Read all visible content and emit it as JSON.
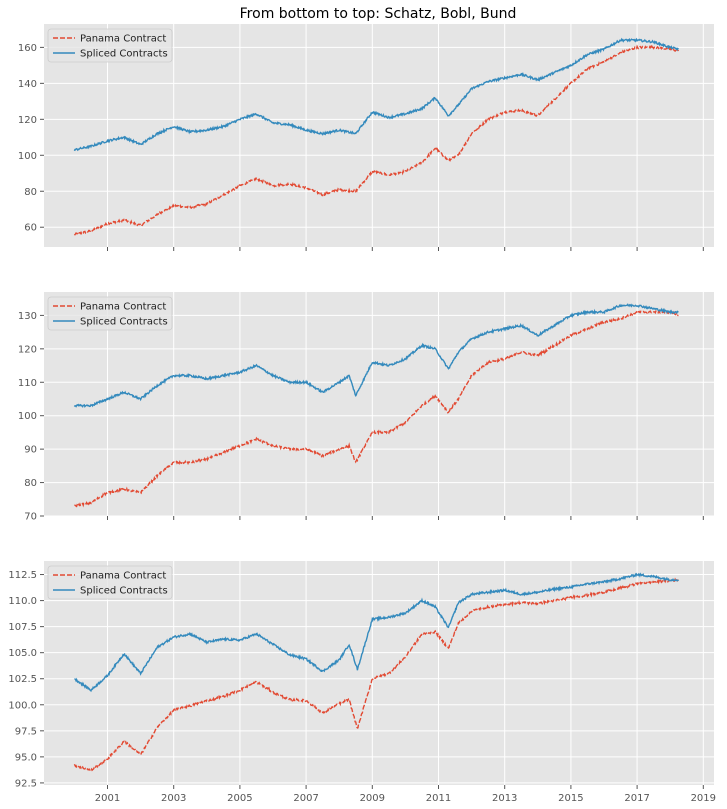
{
  "figure": {
    "title": "From bottom to top: Schatz, Bobl, Bund"
  },
  "chart_data": [
    {
      "type": "line",
      "xlabel": "",
      "ylabel": "",
      "x_start": 2000.0,
      "x_end": 2018.25,
      "ylim": [
        49,
        173
      ],
      "yticks": [
        60,
        80,
        100,
        120,
        140,
        160
      ],
      "ytick_labels": [
        "60",
        "80",
        "100",
        "120",
        "140",
        "160"
      ],
      "xticks": [
        2001,
        2003,
        2005,
        2007,
        2009,
        2011,
        2013,
        2015,
        2017,
        2019
      ],
      "xtick_labels": [],
      "grid": true,
      "legend": "top-left",
      "series": [
        {
          "name": "Panama Contract",
          "color": "#E24A33",
          "dash": "dashed",
          "points": [
            [
              2000.0,
              56
            ],
            [
              2000.5,
              58
            ],
            [
              2001.0,
              62
            ],
            [
              2001.5,
              64
            ],
            [
              2002.0,
              61
            ],
            [
              2002.5,
              67
            ],
            [
              2003.0,
              72
            ],
            [
              2003.5,
              71
            ],
            [
              2004.0,
              73
            ],
            [
              2004.5,
              78
            ],
            [
              2005.0,
              83
            ],
            [
              2005.5,
              87
            ],
            [
              2006.0,
              83
            ],
            [
              2006.5,
              84
            ],
            [
              2007.0,
              82
            ],
            [
              2007.5,
              78
            ],
            [
              2008.0,
              81
            ],
            [
              2008.5,
              80
            ],
            [
              2009.0,
              91
            ],
            [
              2009.5,
              89
            ],
            [
              2010.0,
              91
            ],
            [
              2010.5,
              96
            ],
            [
              2010.9,
              104
            ],
            [
              2011.3,
              97
            ],
            [
              2011.6,
              100
            ],
            [
              2012.0,
              112
            ],
            [
              2012.5,
              120
            ],
            [
              2013.0,
              124
            ],
            [
              2013.5,
              125
            ],
            [
              2014.0,
              122
            ],
            [
              2014.5,
              131
            ],
            [
              2015.0,
              140
            ],
            [
              2015.5,
              148
            ],
            [
              2016.0,
              152
            ],
            [
              2016.5,
              157
            ],
            [
              2017.0,
              160
            ],
            [
              2017.5,
              160
            ],
            [
              2018.0,
              159
            ],
            [
              2018.25,
              158
            ]
          ]
        },
        {
          "name": "Spliced Contracts",
          "color": "#348ABD",
          "dash": "solid",
          "points": [
            [
              2000.0,
              103
            ],
            [
              2000.5,
              105
            ],
            [
              2001.0,
              108
            ],
            [
              2001.5,
              110
            ],
            [
              2002.0,
              106
            ],
            [
              2002.5,
              112
            ],
            [
              2003.0,
              116
            ],
            [
              2003.5,
              113
            ],
            [
              2004.0,
              114
            ],
            [
              2004.5,
              116
            ],
            [
              2005.0,
              120
            ],
            [
              2005.5,
              123
            ],
            [
              2006.0,
              118
            ],
            [
              2006.5,
              117
            ],
            [
              2007.0,
              114
            ],
            [
              2007.5,
              112
            ],
            [
              2008.0,
              114
            ],
            [
              2008.5,
              112
            ],
            [
              2009.0,
              124
            ],
            [
              2009.5,
              121
            ],
            [
              2010.0,
              123
            ],
            [
              2010.5,
              126
            ],
            [
              2010.9,
              132
            ],
            [
              2011.3,
              122
            ],
            [
              2011.6,
              128
            ],
            [
              2012.0,
              137
            ],
            [
              2012.5,
              141
            ],
            [
              2013.0,
              143
            ],
            [
              2013.5,
              145
            ],
            [
              2014.0,
              142
            ],
            [
              2014.5,
              146
            ],
            [
              2015.0,
              150
            ],
            [
              2015.5,
              156
            ],
            [
              2016.0,
              159
            ],
            [
              2016.5,
              164
            ],
            [
              2017.0,
              164
            ],
            [
              2017.5,
              163
            ],
            [
              2018.0,
              160
            ],
            [
              2018.25,
              159
            ]
          ]
        }
      ]
    },
    {
      "type": "line",
      "xlabel": "",
      "ylabel": "",
      "x_start": 2000.0,
      "x_end": 2018.25,
      "ylim": [
        70,
        137
      ],
      "yticks": [
        70,
        80,
        90,
        100,
        110,
        120,
        130
      ],
      "ytick_labels": [
        "70",
        "80",
        "90",
        "100",
        "110",
        "120",
        "130"
      ],
      "xticks": [
        2001,
        2003,
        2005,
        2007,
        2009,
        2011,
        2013,
        2015,
        2017,
        2019
      ],
      "xtick_labels": [],
      "grid": true,
      "legend": "top-left",
      "series": [
        {
          "name": "Panama Contract",
          "color": "#E24A33",
          "dash": "dashed",
          "points": [
            [
              2000.0,
              73
            ],
            [
              2000.5,
              74
            ],
            [
              2001.0,
              77
            ],
            [
              2001.5,
              78
            ],
            [
              2002.0,
              77
            ],
            [
              2002.5,
              82
            ],
            [
              2003.0,
              86
            ],
            [
              2003.5,
              86
            ],
            [
              2004.0,
              87
            ],
            [
              2004.5,
              89
            ],
            [
              2005.0,
              91
            ],
            [
              2005.5,
              93
            ],
            [
              2006.0,
              91
            ],
            [
              2006.5,
              90
            ],
            [
              2007.0,
              90
            ],
            [
              2007.5,
              88
            ],
            [
              2008.0,
              90
            ],
            [
              2008.3,
              91
            ],
            [
              2008.5,
              86
            ],
            [
              2009.0,
              95
            ],
            [
              2009.5,
              95
            ],
            [
              2010.0,
              98
            ],
            [
              2010.5,
              103
            ],
            [
              2010.9,
              106
            ],
            [
              2011.3,
              101
            ],
            [
              2011.6,
              105
            ],
            [
              2012.0,
              112
            ],
            [
              2012.5,
              116
            ],
            [
              2013.0,
              117
            ],
            [
              2013.5,
              119
            ],
            [
              2014.0,
              118
            ],
            [
              2014.5,
              121
            ],
            [
              2015.0,
              124
            ],
            [
              2015.5,
              126
            ],
            [
              2016.0,
              128
            ],
            [
              2016.5,
              129
            ],
            [
              2017.0,
              131
            ],
            [
              2017.5,
              131
            ],
            [
              2018.0,
              131
            ],
            [
              2018.25,
              130
            ]
          ]
        },
        {
          "name": "Spliced Contracts",
          "color": "#348ABD",
          "dash": "solid",
          "points": [
            [
              2000.0,
              103
            ],
            [
              2000.5,
              103
            ],
            [
              2001.0,
              105
            ],
            [
              2001.5,
              107
            ],
            [
              2002.0,
              105
            ],
            [
              2002.5,
              109
            ],
            [
              2003.0,
              112
            ],
            [
              2003.5,
              112
            ],
            [
              2004.0,
              111
            ],
            [
              2004.5,
              112
            ],
            [
              2005.0,
              113
            ],
            [
              2005.5,
              115
            ],
            [
              2006.0,
              112
            ],
            [
              2006.5,
              110
            ],
            [
              2007.0,
              110
            ],
            [
              2007.5,
              107
            ],
            [
              2008.0,
              110
            ],
            [
              2008.3,
              112
            ],
            [
              2008.5,
              106
            ],
            [
              2009.0,
              116
            ],
            [
              2009.5,
              115
            ],
            [
              2010.0,
              117
            ],
            [
              2010.5,
              121
            ],
            [
              2010.9,
              120
            ],
            [
              2011.3,
              114
            ],
            [
              2011.6,
              119
            ],
            [
              2012.0,
              123
            ],
            [
              2012.5,
              125
            ],
            [
              2013.0,
              126
            ],
            [
              2013.5,
              127
            ],
            [
              2014.0,
              124
            ],
            [
              2014.5,
              127
            ],
            [
              2015.0,
              130
            ],
            [
              2015.5,
              131
            ],
            [
              2016.0,
              131
            ],
            [
              2016.5,
              133
            ],
            [
              2017.0,
              133
            ],
            [
              2017.5,
              132
            ],
            [
              2018.0,
              131
            ],
            [
              2018.25,
              131
            ]
          ]
        }
      ]
    },
    {
      "type": "line",
      "xlabel": "",
      "ylabel": "",
      "x_start": 2000.0,
      "x_end": 2018.25,
      "ylim": [
        92.3,
        113.8
      ],
      "yticks": [
        92.5,
        95.0,
        97.5,
        100.0,
        102.5,
        105.0,
        107.5,
        110.0,
        112.5
      ],
      "ytick_labels": [
        "92.5",
        "95.0",
        "97.5",
        "100.0",
        "102.5",
        "105.0",
        "107.5",
        "110.0",
        "112.5"
      ],
      "xticks": [
        2001,
        2003,
        2005,
        2007,
        2009,
        2011,
        2013,
        2015,
        2017,
        2019
      ],
      "xtick_labels": [
        "2001",
        "2003",
        "2005",
        "2007",
        "2009",
        "2011",
        "2013",
        "2015",
        "2017",
        "2019"
      ],
      "grid": true,
      "legend": "top-left",
      "series": [
        {
          "name": "Panama Contract",
          "color": "#E24A33",
          "dash": "dashed",
          "points": [
            [
              2000.0,
              94.2
            ],
            [
              2000.5,
              93.7
            ],
            [
              2001.0,
              94.8
            ],
            [
              2001.5,
              96.5
            ],
            [
              2002.0,
              95.2
            ],
            [
              2002.5,
              97.8
            ],
            [
              2003.0,
              99.5
            ],
            [
              2003.5,
              99.9
            ],
            [
              2004.0,
              100.4
            ],
            [
              2004.5,
              100.8
            ],
            [
              2005.0,
              101.4
            ],
            [
              2005.5,
              102.2
            ],
            [
              2006.0,
              101.2
            ],
            [
              2006.5,
              100.5
            ],
            [
              2007.0,
              100.4
            ],
            [
              2007.5,
              99.2
            ],
            [
              2008.0,
              100.1
            ],
            [
              2008.3,
              100.5
            ],
            [
              2008.55,
              97.7
            ],
            [
              2009.0,
              102.5
            ],
            [
              2009.5,
              103.0
            ],
            [
              2010.0,
              104.6
            ],
            [
              2010.5,
              106.8
            ],
            [
              2010.9,
              107.0
            ],
            [
              2011.3,
              105.4
            ],
            [
              2011.6,
              107.8
            ],
            [
              2012.0,
              109.0
            ],
            [
              2012.5,
              109.4
            ],
            [
              2013.0,
              109.6
            ],
            [
              2013.5,
              109.8
            ],
            [
              2014.0,
              109.7
            ],
            [
              2014.5,
              110.0
            ],
            [
              2015.0,
              110.3
            ],
            [
              2015.5,
              110.5
            ],
            [
              2016.0,
              110.8
            ],
            [
              2016.5,
              111.2
            ],
            [
              2017.0,
              111.6
            ],
            [
              2017.5,
              111.8
            ],
            [
              2018.0,
              111.9
            ],
            [
              2018.25,
              112.0
            ]
          ]
        },
        {
          "name": "Spliced Contracts",
          "color": "#348ABD",
          "dash": "solid",
          "points": [
            [
              2000.0,
              102.5
            ],
            [
              2000.5,
              101.4
            ],
            [
              2001.0,
              102.8
            ],
            [
              2001.5,
              104.9
            ],
            [
              2002.0,
              103.0
            ],
            [
              2002.5,
              105.5
            ],
            [
              2003.0,
              106.5
            ],
            [
              2003.5,
              106.8
            ],
            [
              2004.0,
              106.0
            ],
            [
              2004.5,
              106.3
            ],
            [
              2005.0,
              106.2
            ],
            [
              2005.5,
              106.8
            ],
            [
              2006.0,
              105.8
            ],
            [
              2006.5,
              104.8
            ],
            [
              2007.0,
              104.4
            ],
            [
              2007.5,
              103.2
            ],
            [
              2008.0,
              104.3
            ],
            [
              2008.3,
              105.8
            ],
            [
              2008.55,
              103.4
            ],
            [
              2009.0,
              108.2
            ],
            [
              2009.5,
              108.4
            ],
            [
              2010.0,
              108.8
            ],
            [
              2010.5,
              110.0
            ],
            [
              2010.9,
              109.4
            ],
            [
              2011.3,
              107.4
            ],
            [
              2011.6,
              109.8
            ],
            [
              2012.0,
              110.6
            ],
            [
              2012.5,
              110.8
            ],
            [
              2013.0,
              111.0
            ],
            [
              2013.5,
              110.6
            ],
            [
              2014.0,
              110.8
            ],
            [
              2014.5,
              111.1
            ],
            [
              2015.0,
              111.3
            ],
            [
              2015.5,
              111.6
            ],
            [
              2016.0,
              111.8
            ],
            [
              2016.5,
              112.1
            ],
            [
              2017.0,
              112.5
            ],
            [
              2017.5,
              112.3
            ],
            [
              2018.0,
              112.0
            ],
            [
              2018.25,
              112.0
            ]
          ]
        }
      ]
    }
  ]
}
